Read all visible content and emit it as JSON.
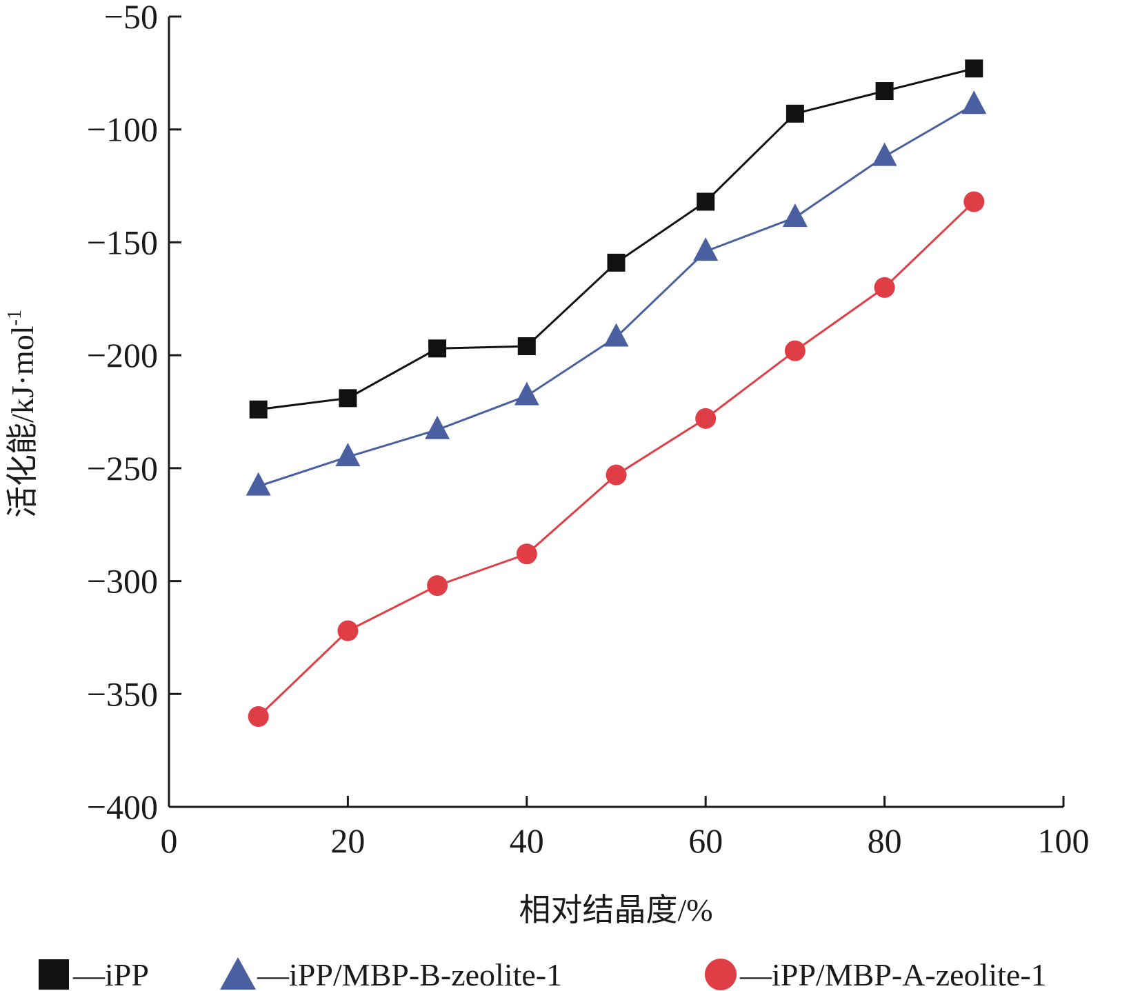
{
  "chart_data": {
    "type": "line",
    "title": "",
    "xlabel": "相对结晶度/%",
    "ylabel": "活化能/kJ·mol",
    "ylabel_superscript": "-1",
    "xlim": [
      0,
      100
    ],
    "ylim": [
      -400,
      -50
    ],
    "x_ticks": [
      "0",
      "20",
      "40",
      "60",
      "80",
      "100"
    ],
    "y_ticks": [
      "-50",
      "-100",
      "-150",
      "-200",
      "-250",
      "-300",
      "-350",
      "-400"
    ],
    "x": [
      10,
      20,
      30,
      40,
      50,
      60,
      70,
      80,
      90
    ],
    "grid": false,
    "legend_position": "bottom",
    "series": [
      {
        "name": "iPP",
        "legend_label": "—iPP",
        "marker": "square",
        "line_color": "#111111",
        "marker_color": "#111111",
        "values": [
          -224,
          -219,
          -197,
          -196,
          -159,
          -132,
          -93,
          -83,
          -73
        ]
      },
      {
        "name": "iPP/MBP-B-zeolite-1",
        "legend_label": "—iPP/MBP-B-zeolite-1",
        "marker": "triangle",
        "line_color": "#4a5fa0",
        "marker_color": "#4a5fa0",
        "values": [
          -258,
          -245,
          -233,
          -218,
          -192,
          -154,
          -139,
          -112,
          -89
        ]
      },
      {
        "name": "iPP/MBP-A-zeolite-1",
        "legend_label": "—iPP/MBP-A-zeolite-1",
        "marker": "circle",
        "line_color": "#e03e46",
        "marker_color": "#e03e46",
        "values": [
          -360,
          -322,
          -302,
          -288,
          -253,
          -228,
          -198,
          -170,
          -132
        ]
      }
    ]
  }
}
